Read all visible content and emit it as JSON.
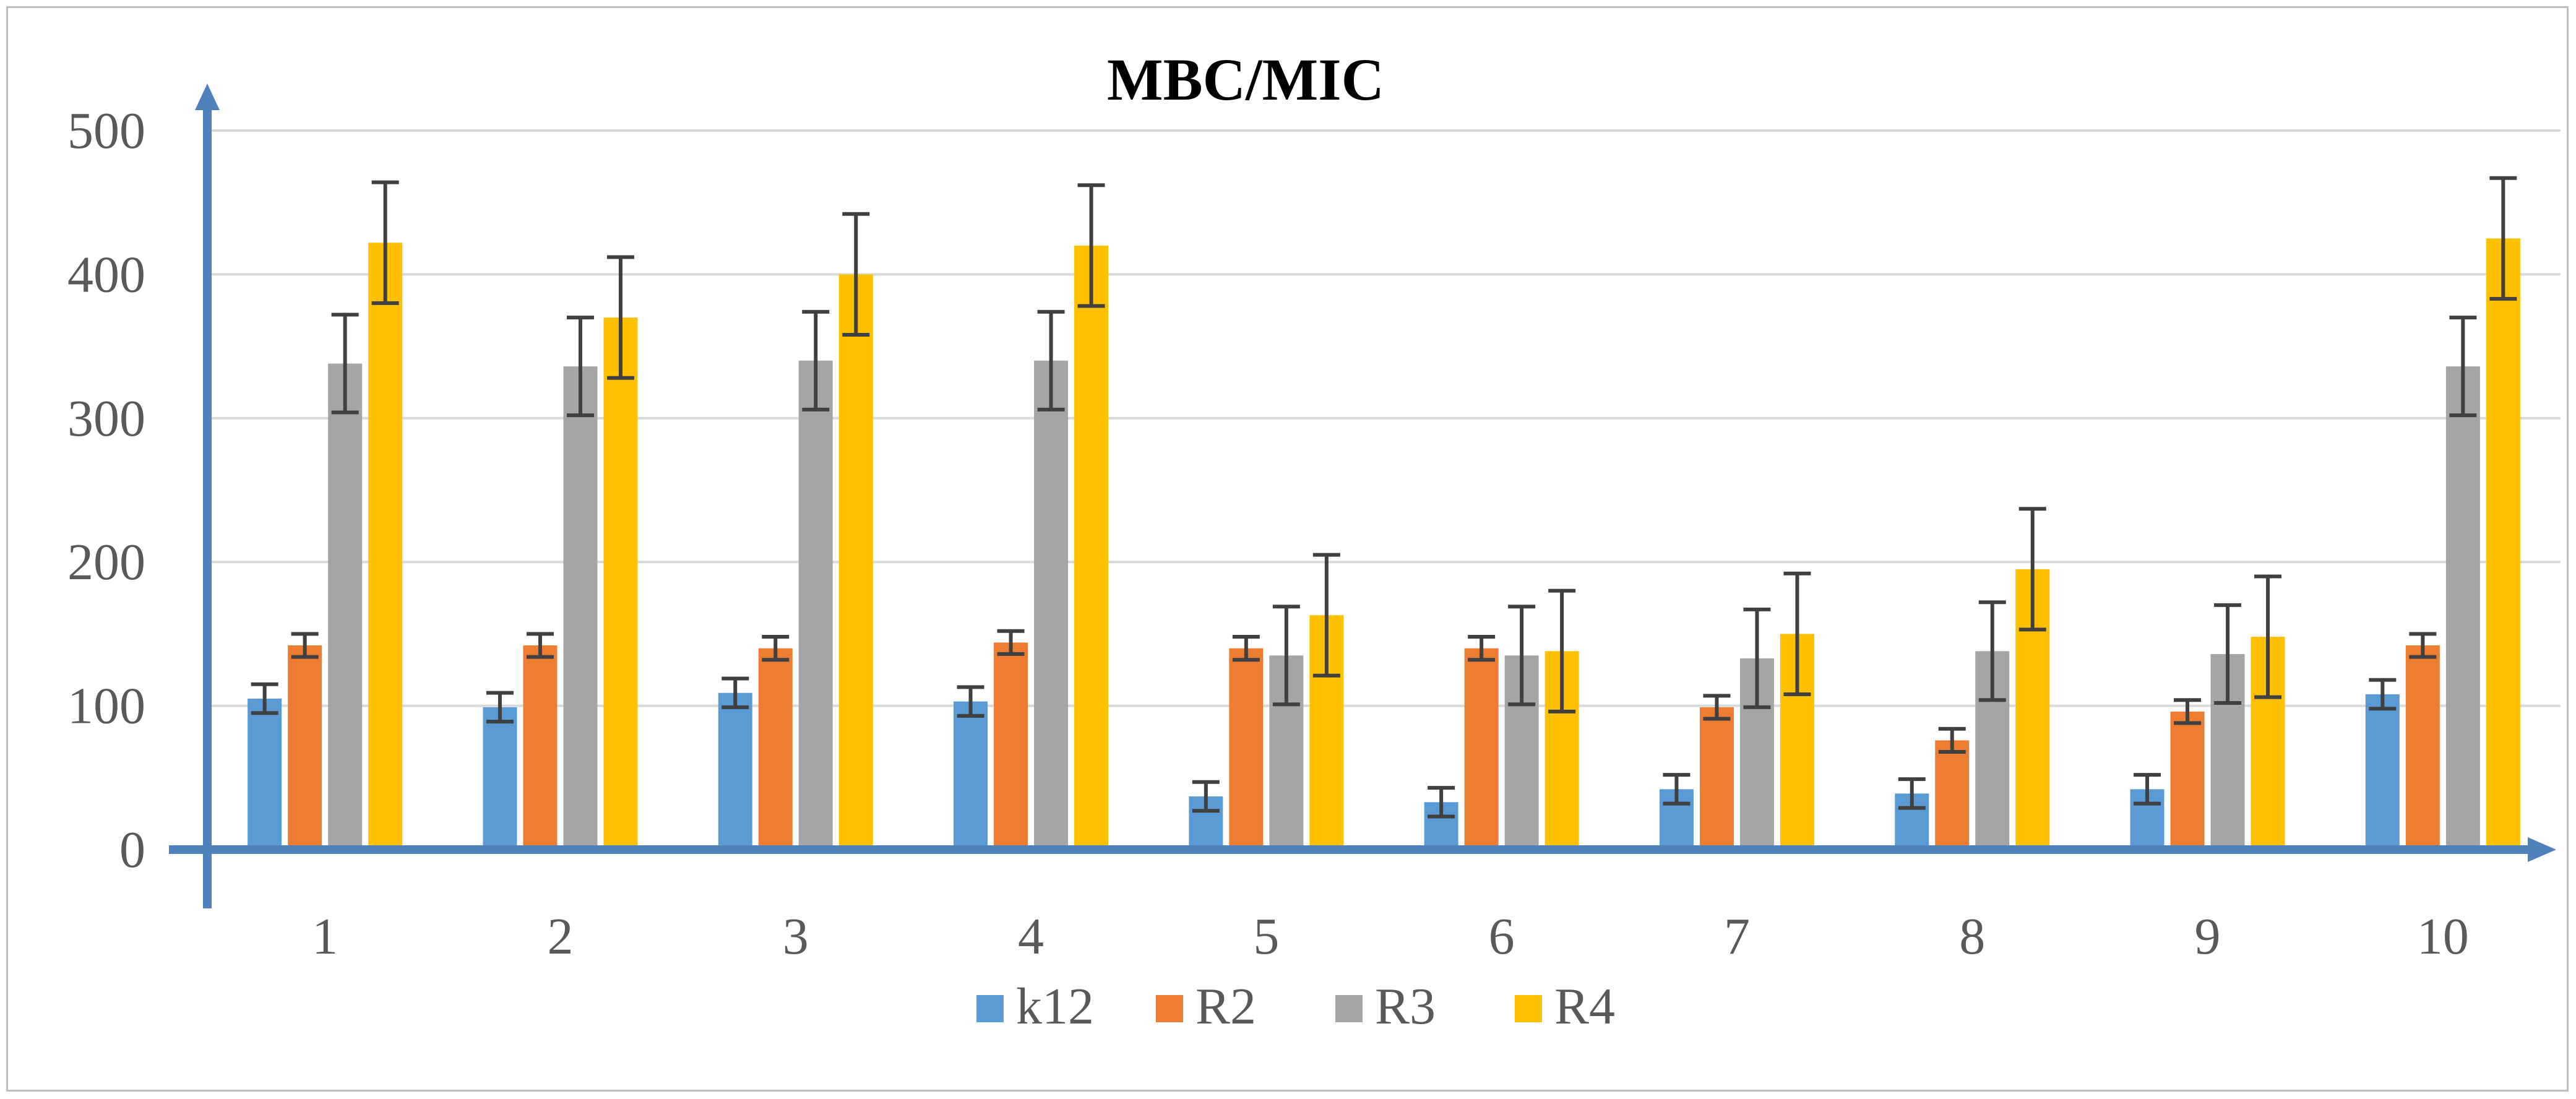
{
  "chart_data": {
    "type": "bar",
    "title": "MBC/MIC",
    "xlabel": "",
    "ylabel": "",
    "ylim": [
      0,
      500
    ],
    "yticks": [
      0,
      100,
      200,
      300,
      400,
      500
    ],
    "grid": true,
    "legend_position": "bottom",
    "categories": [
      "1",
      "2",
      "3",
      "4",
      "5",
      "6",
      "7",
      "8",
      "9",
      "10"
    ],
    "series": [
      {
        "name": "k12",
        "color": "#5b9bd5",
        "values": [
          105,
          99,
          109,
          103,
          37,
          33,
          42,
          39,
          42,
          108
        ],
        "errors": [
          10,
          10,
          10,
          10,
          10,
          10,
          10,
          10,
          10,
          10
        ]
      },
      {
        "name": "R2",
        "color": "#ed7d31",
        "values": [
          142,
          142,
          140,
          144,
          140,
          140,
          99,
          76,
          96,
          142
        ],
        "errors": [
          8,
          8,
          8,
          8,
          8,
          8,
          8,
          8,
          8,
          8
        ]
      },
      {
        "name": "R3",
        "color": "#a5a5a5",
        "values": [
          338,
          336,
          340,
          340,
          135,
          135,
          133,
          138,
          136,
          336
        ],
        "errors": [
          34,
          34,
          34,
          34,
          34,
          34,
          34,
          34,
          34,
          34
        ]
      },
      {
        "name": "R4",
        "color": "#ffc000",
        "values": [
          422,
          370,
          400,
          420,
          163,
          138,
          150,
          195,
          148,
          425
        ],
        "errors": [
          42,
          42,
          42,
          42,
          42,
          42,
          42,
          42,
          42,
          42
        ]
      }
    ],
    "axis_color": "#4f81bd",
    "grid_color": "#d9d9d9",
    "error_bar_color": "#404040"
  }
}
